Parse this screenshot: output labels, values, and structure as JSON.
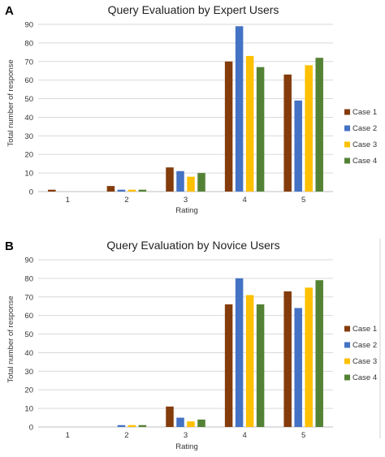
{
  "chart_data": [
    {
      "type": "bar",
      "panel": "A",
      "title": "Query Evaluation by Expert Users",
      "xlabel": "Rating",
      "ylabel": "Total number of response",
      "categories": [
        "1",
        "2",
        "3",
        "4",
        "5"
      ],
      "ylim": [
        0,
        90
      ],
      "yticks": [
        0,
        10,
        20,
        30,
        40,
        50,
        60,
        70,
        80,
        90
      ],
      "grid": true,
      "legend_position": "right",
      "series": [
        {
          "name": "Case 1",
          "color": "#843c0c",
          "values": [
            1,
            3,
            13,
            70,
            63
          ]
        },
        {
          "name": "Case 2",
          "color": "#4472c4",
          "values": [
            0,
            1,
            11,
            89,
            49
          ]
        },
        {
          "name": "Case 3",
          "color": "#ffc000",
          "values": [
            0,
            1,
            8,
            73,
            68
          ]
        },
        {
          "name": "Case 4",
          "color": "#548235",
          "values": [
            0,
            1,
            10,
            67,
            72
          ]
        }
      ]
    },
    {
      "type": "bar",
      "panel": "B",
      "title": "Query Evaluation by Novice Users",
      "xlabel": "Rating",
      "ylabel": "Total number of response",
      "categories": [
        "1",
        "2",
        "3",
        "4",
        "5"
      ],
      "ylim": [
        0,
        90
      ],
      "yticks": [
        0,
        10,
        20,
        30,
        40,
        50,
        60,
        70,
        80,
        90
      ],
      "grid": true,
      "legend_position": "right",
      "series": [
        {
          "name": "Case 1",
          "color": "#843c0c",
          "values": [
            0,
            0,
            11,
            66,
            73
          ]
        },
        {
          "name": "Case 2",
          "color": "#4472c4",
          "values": [
            0,
            1,
            5,
            80,
            64
          ]
        },
        {
          "name": "Case 3",
          "color": "#ffc000",
          "values": [
            0,
            1,
            3,
            71,
            75
          ]
        },
        {
          "name": "Case 4",
          "color": "#548235",
          "values": [
            0,
            1,
            4,
            66,
            79
          ]
        }
      ]
    }
  ]
}
